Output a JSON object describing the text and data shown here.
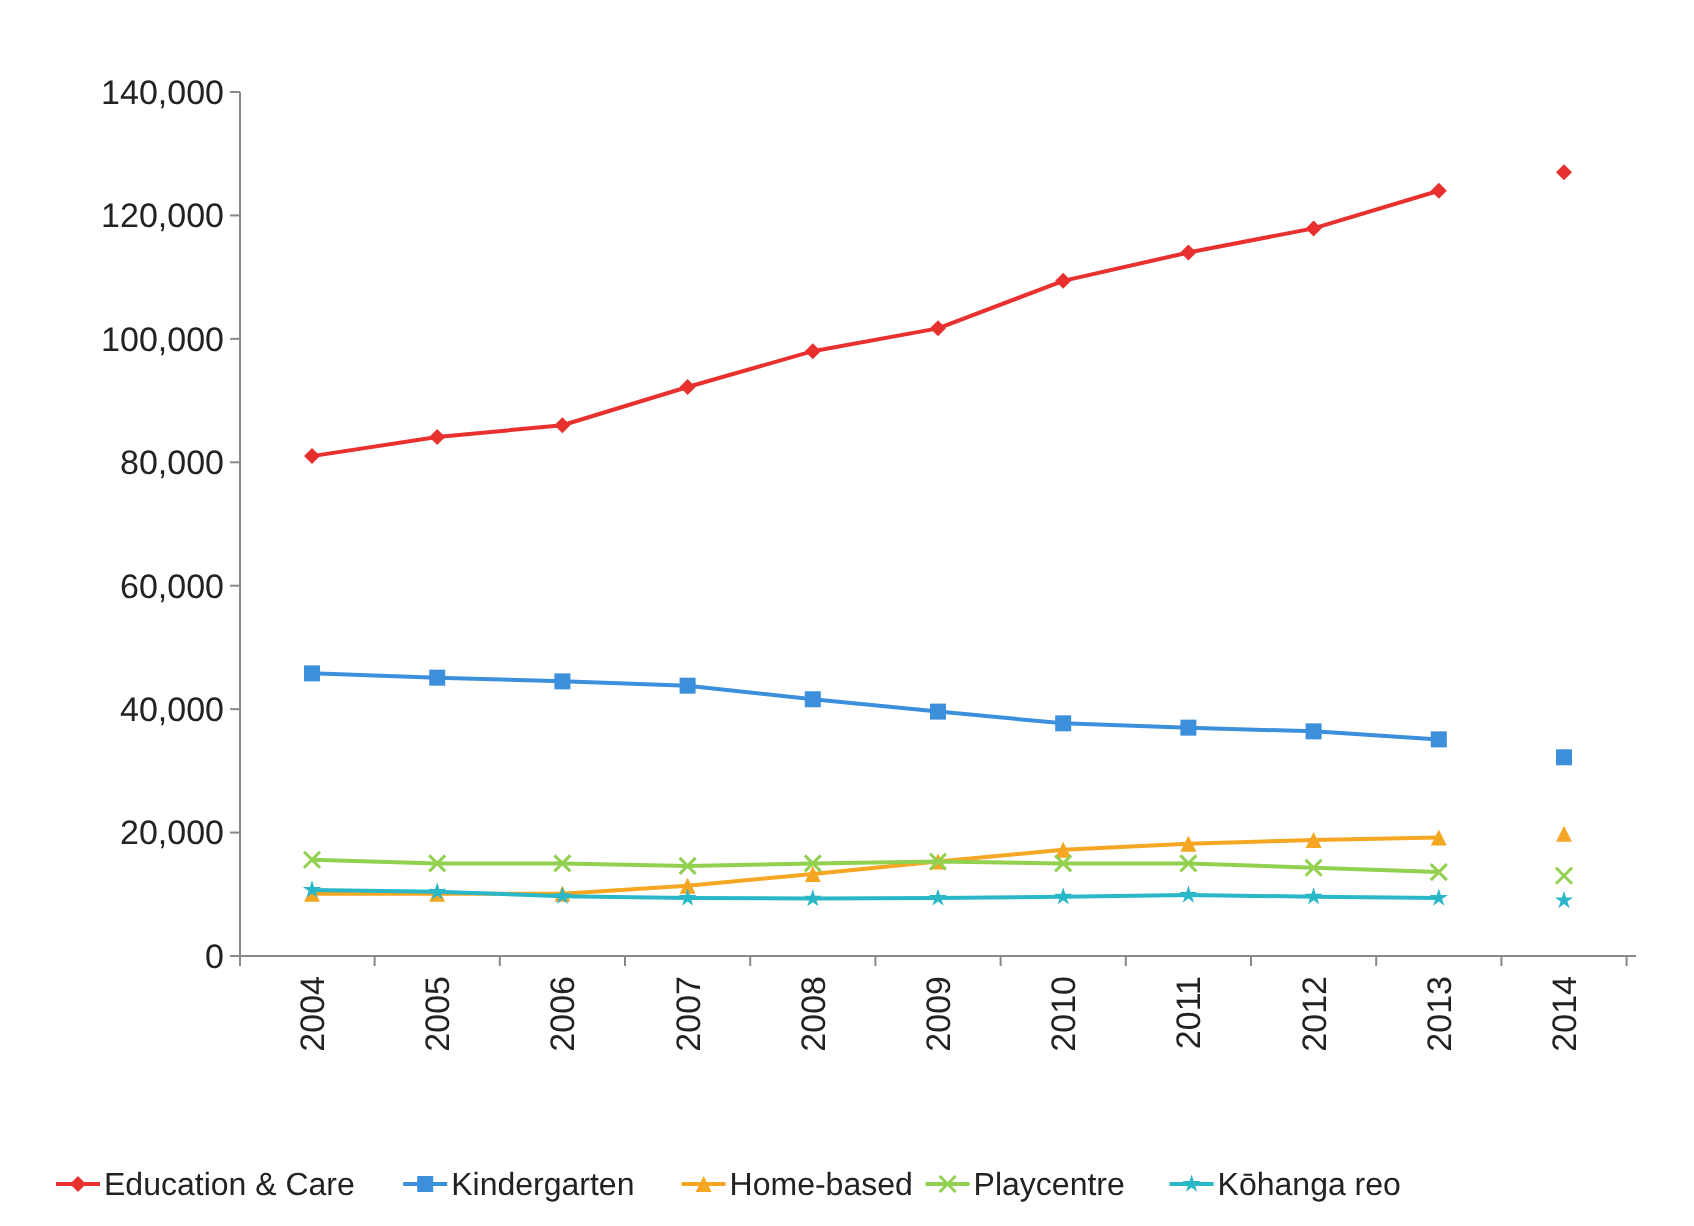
{
  "chart_data": {
    "type": "line",
    "categories": [
      "2004",
      "2005",
      "2006",
      "2007",
      "2008",
      "2009",
      "2010",
      "2011",
      "2012",
      "2013",
      "2014"
    ],
    "ylim": [
      0,
      140000
    ],
    "yticks": [
      {
        "value": 0,
        "label": "0"
      },
      {
        "value": 20000,
        "label": "20,000"
      },
      {
        "value": 40000,
        "label": "40,000"
      },
      {
        "value": 60000,
        "label": "60,000"
      },
      {
        "value": 80000,
        "label": "80,000"
      },
      {
        "value": 100000,
        "label": "100,000"
      },
      {
        "value": 120000,
        "label": "120,000"
      },
      {
        "value": 140000,
        "label": "140,000"
      }
    ],
    "grid": false,
    "legend": "bottom",
    "series": [
      {
        "name": "Education & Care",
        "color": "#e8312f",
        "marker": "diamond",
        "values": [
          81000,
          84100,
          86000,
          92200,
          98000,
          101700,
          109400,
          114000,
          117900,
          124000,
          null
        ]
      },
      {
        "name": "Kindergarten",
        "color": "#3c8fdb",
        "marker": "square",
        "values": [
          45800,
          45100,
          44500,
          43800,
          41600,
          39600,
          37700,
          37000,
          36400,
          35100,
          null
        ]
      },
      {
        "name": "Home-based",
        "color": "#f5a623",
        "marker": "triangle",
        "values": [
          10100,
          10100,
          10100,
          11400,
          13300,
          15300,
          17200,
          18200,
          18800,
          19200,
          null
        ]
      },
      {
        "name": "Playcentre",
        "color": "#92d050",
        "marker": "cross",
        "values": [
          15600,
          15000,
          15000,
          14600,
          15000,
          15300,
          15000,
          15000,
          14300,
          13600,
          null
        ]
      },
      {
        "name": "Kōhanga reo",
        "color": "#2ab8c8",
        "marker": "star",
        "values": [
          10700,
          10400,
          9700,
          9400,
          9300,
          9400,
          9600,
          9900,
          9600,
          9400,
          null
        ]
      },
      {
        "type": "scatter",
        "color": "#e8312f",
        "marker": "diamond",
        "values": [
          null,
          null,
          null,
          null,
          null,
          null,
          null,
          null,
          null,
          null,
          127000
        ]
      },
      {
        "type": "scatter",
        "color": "#3c8fdb",
        "marker": "square",
        "values": [
          null,
          null,
          null,
          null,
          null,
          null,
          null,
          null,
          null,
          null,
          32200
        ]
      },
      {
        "type": "scatter",
        "color": "#f5a623",
        "marker": "triangle",
        "values": [
          null,
          null,
          null,
          null,
          null,
          null,
          null,
          null,
          null,
          null,
          19800
        ]
      },
      {
        "type": "scatter",
        "color": "#92d050",
        "marker": "cross",
        "values": [
          null,
          null,
          null,
          null,
          null,
          null,
          null,
          null,
          null,
          null,
          13000
        ]
      },
      {
        "type": "scatter",
        "color": "#2ab8c8",
        "marker": "star",
        "values": [
          null,
          null,
          null,
          null,
          null,
          null,
          null,
          null,
          null,
          null,
          9000
        ]
      }
    ]
  }
}
